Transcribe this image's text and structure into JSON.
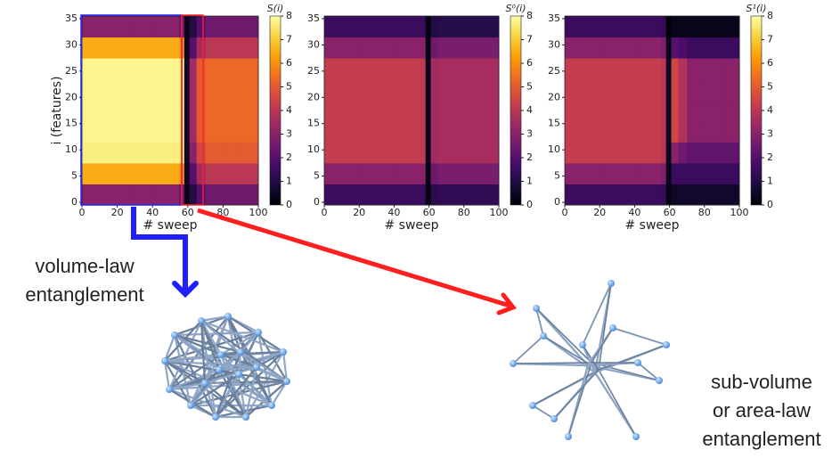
{
  "chart_data": [
    {
      "type": "heatmap",
      "title": "S(i)",
      "x_label": "# sweep",
      "y_label": "i (features)",
      "xlim": [
        0,
        100
      ],
      "xticks": [
        0,
        20,
        40,
        60,
        80,
        100
      ],
      "ylim": [
        -0.5,
        35.5
      ],
      "yticks": [
        0,
        5,
        10,
        15,
        20,
        25,
        30,
        35
      ],
      "x_edges": [
        0,
        10,
        20,
        30,
        40,
        50,
        55,
        58,
        61,
        65,
        70,
        80,
        90,
        100
      ],
      "y_edges": [
        -0.5,
        3.5,
        7.5,
        11.5,
        15.5,
        19.5,
        23.5,
        27.5,
        31.5,
        35.5
      ],
      "z": [
        [
          3,
          3,
          3,
          3,
          3,
          3,
          2.5,
          0.3,
          1,
          2,
          2.5,
          2.5,
          2.5
        ],
        [
          6.5,
          6.5,
          6.5,
          6.5,
          6.5,
          6.5,
          6,
          0.5,
          2,
          3.5,
          4,
          4,
          4
        ],
        [
          7.7,
          7.7,
          7.7,
          7.7,
          7.7,
          7.7,
          7.5,
          0.5,
          3,
          4.5,
          5,
          5,
          5
        ],
        [
          7.8,
          7.8,
          7.8,
          7.8,
          7.8,
          7.8,
          7.6,
          0.6,
          3.5,
          5,
          5.3,
          5.3,
          5.3
        ],
        [
          7.8,
          7.8,
          7.8,
          7.8,
          7.8,
          7.8,
          7.6,
          0.6,
          3.5,
          5,
          5.3,
          5.3,
          5.3
        ],
        [
          7.8,
          7.8,
          7.8,
          7.8,
          7.8,
          7.8,
          7.6,
          0.6,
          3.5,
          5,
          5.3,
          5.3,
          5.3
        ],
        [
          7.8,
          7.8,
          7.8,
          7.8,
          7.8,
          7.8,
          7.6,
          0.6,
          3.5,
          5,
          5.3,
          5.3,
          5.3
        ],
        [
          6.5,
          6.5,
          6.5,
          6.5,
          6.5,
          6.5,
          6,
          0.4,
          2,
          3.5,
          4,
          4,
          4
        ],
        [
          3,
          3,
          3,
          3,
          3,
          3,
          2.5,
          0.3,
          1,
          2,
          2.5,
          2.5,
          2.5
        ]
      ],
      "clim": [
        0,
        8
      ],
      "cticks": [
        0,
        1,
        2,
        3,
        4,
        5,
        6,
        7,
        8
      ],
      "colormap": [
        "#000004",
        "#1b0c41",
        "#4a0c6b",
        "#781c6d",
        "#a52c60",
        "#cf4446",
        "#ed6925",
        "#fb9b06",
        "#f7d13d",
        "#fcffa4"
      ]
    },
    {
      "type": "heatmap",
      "title": "S⁰(i)",
      "x_label": "# sweep",
      "xlim": [
        0,
        100
      ],
      "xticks": [
        0,
        20,
        40,
        60,
        80,
        100
      ],
      "ylim": [
        -0.5,
        35.5
      ],
      "yticks": [
        0,
        5,
        10,
        15,
        20,
        25,
        30,
        35
      ],
      "x_edges": [
        0,
        10,
        20,
        30,
        40,
        50,
        55,
        58,
        61,
        65,
        70,
        80,
        90,
        100
      ],
      "y_edges": [
        -0.5,
        3.5,
        7.5,
        11.5,
        15.5,
        19.5,
        23.5,
        27.5,
        31.5,
        35.5
      ],
      "z": [
        [
          1.5,
          1.5,
          1.5,
          1.5,
          1.5,
          1.5,
          1.5,
          0.2,
          1.2,
          1.3,
          1.3,
          1.3,
          1.3
        ],
        [
          3,
          3,
          3,
          3,
          3,
          3,
          3,
          0.3,
          2.5,
          2.7,
          2.7,
          2.7,
          2.7
        ],
        [
          4.2,
          4.2,
          4.2,
          4.2,
          4.2,
          4.2,
          4.1,
          0.4,
          3.5,
          3.6,
          3.6,
          3.6,
          3.6
        ],
        [
          4.2,
          4.2,
          4.2,
          4.2,
          4.2,
          4.2,
          4.1,
          0.4,
          3.5,
          3.6,
          3.6,
          3.6,
          3.6
        ],
        [
          4.2,
          4.2,
          4.2,
          4.2,
          4.2,
          4.2,
          4.1,
          0.4,
          3.5,
          3.6,
          3.6,
          3.6,
          3.6
        ],
        [
          4.2,
          4.2,
          4.2,
          4.2,
          4.2,
          4.2,
          4.1,
          0.4,
          3.5,
          3.6,
          3.6,
          3.6,
          3.6
        ],
        [
          4.2,
          4.2,
          4.2,
          4.2,
          4.2,
          4.2,
          4.1,
          0.4,
          3.5,
          3.6,
          3.6,
          3.6,
          3.6
        ],
        [
          3,
          3,
          3,
          3,
          3,
          3,
          3,
          0.3,
          2.5,
          2.7,
          2.7,
          2.7,
          2.7
        ],
        [
          1.5,
          1.5,
          1.5,
          1.5,
          1.5,
          1.5,
          1.5,
          0.2,
          1,
          1.1,
          1.1,
          1.1,
          1.1
        ]
      ],
      "clim": [
        0,
        8
      ],
      "cticks": [
        0,
        1,
        2,
        3,
        4,
        5,
        6,
        7,
        8
      ],
      "colormap": [
        "#000004",
        "#1b0c41",
        "#4a0c6b",
        "#781c6d",
        "#a52c60",
        "#cf4446",
        "#ed6925",
        "#fb9b06",
        "#f7d13d",
        "#fcffa4"
      ]
    },
    {
      "type": "heatmap",
      "title": "S¹(i)",
      "x_label": "# sweep",
      "xlim": [
        0,
        100
      ],
      "xticks": [
        0,
        20,
        40,
        60,
        80,
        100
      ],
      "ylim": [
        -0.5,
        35.5
      ],
      "yticks": [
        0,
        5,
        10,
        15,
        20,
        25,
        30,
        35
      ],
      "x_edges": [
        0,
        10,
        20,
        30,
        40,
        50,
        55,
        58,
        61,
        65,
        70,
        80,
        90,
        100
      ],
      "y_edges": [
        -0.5,
        3.5,
        7.5,
        11.5,
        15.5,
        19.5,
        23.5,
        27.5,
        31.5,
        35.5
      ],
      "z": [
        [
          1.5,
          1.5,
          1.5,
          1.5,
          1.5,
          1.5,
          1.4,
          0.2,
          0.5,
          0.6,
          0.6,
          0.6,
          0.6
        ],
        [
          3,
          3,
          3,
          3,
          3,
          3,
          2.8,
          0.3,
          1.5,
          1.5,
          1.5,
          1.5,
          1.5
        ],
        [
          4.2,
          4.2,
          4.2,
          4.2,
          4.2,
          4.2,
          4,
          0.4,
          3,
          2.5,
          2.2,
          2.2,
          2.2
        ],
        [
          4.2,
          4.2,
          4.2,
          4.2,
          4.2,
          4.2,
          4,
          0.5,
          4.5,
          3.8,
          3,
          3,
          3
        ],
        [
          4.2,
          4.2,
          4.2,
          4.2,
          4.2,
          4.2,
          4,
          0.5,
          4.5,
          3.8,
          3,
          3,
          3
        ],
        [
          4.2,
          4.2,
          4.2,
          4.2,
          4.2,
          4.2,
          4,
          0.5,
          4.5,
          3.8,
          3,
          3,
          3
        ],
        [
          4.2,
          4.2,
          4.2,
          4.2,
          4.2,
          4.2,
          4,
          0.5,
          4.5,
          3.8,
          3,
          3,
          3
        ],
        [
          3,
          3,
          3,
          3,
          3,
          3,
          2.8,
          0.3,
          2,
          1.8,
          1.5,
          1.5,
          1.5
        ],
        [
          1.5,
          1.5,
          1.5,
          1.5,
          1.5,
          1.5,
          1.4,
          0.1,
          0.3,
          0.3,
          0.3,
          0.3,
          0.3
        ]
      ],
      "clim": [
        0,
        8
      ],
      "cticks": [
        0,
        1,
        2,
        3,
        4,
        5,
        6,
        7,
        8
      ],
      "colormap": [
        "#000004",
        "#1b0c41",
        "#4a0c6b",
        "#781c6d",
        "#a52c60",
        "#cf4446",
        "#ed6925",
        "#fb9b06",
        "#f7d13d",
        "#fcffa4"
      ]
    }
  ],
  "annotations": [
    {
      "lines": [
        "volume-law",
        "entanglement"
      ],
      "color": "#1f1fff"
    },
    {
      "lines": [
        "sub-volume",
        "or area-law",
        "entanglement"
      ],
      "color": "#ff1f1f"
    }
  ]
}
